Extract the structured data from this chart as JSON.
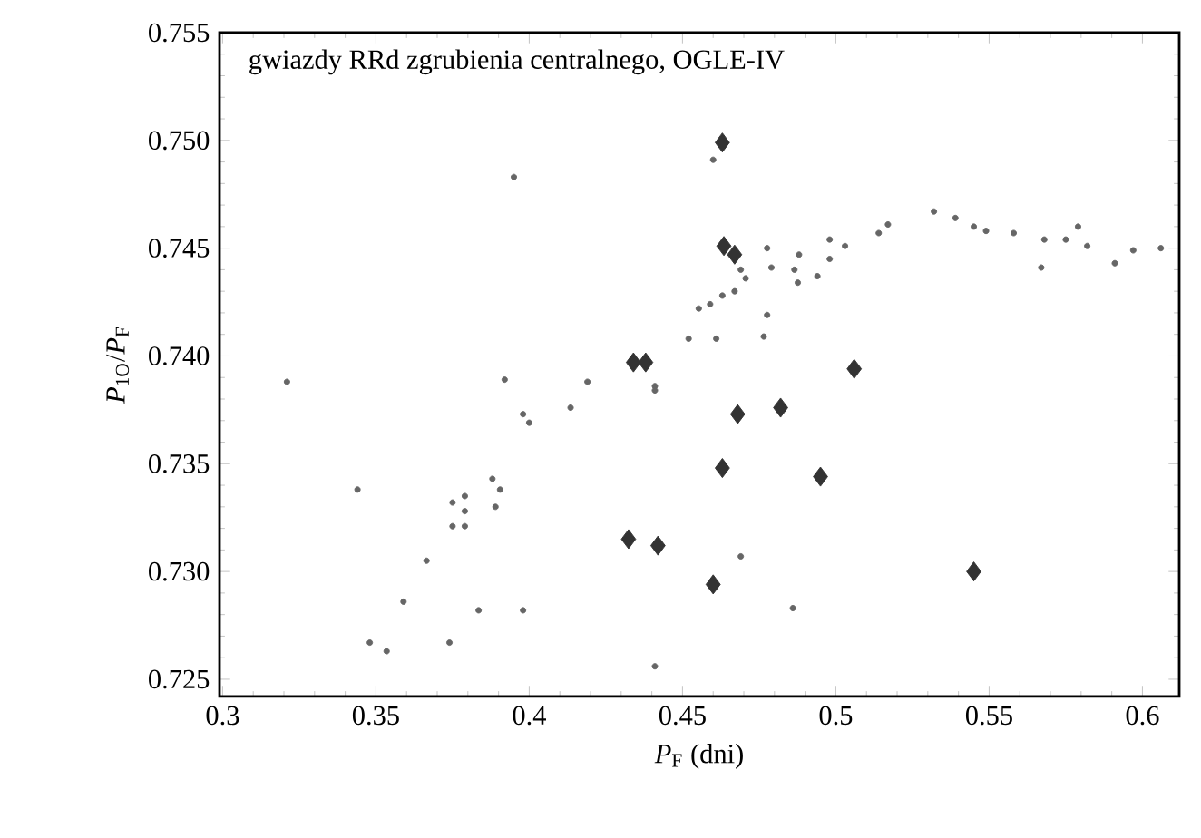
{
  "chart_data": {
    "type": "scatter",
    "title": "gwiazdy RRd zgrubienia centralnego, OGLE-IV",
    "xlabel": "*P*$_{F}$ (dni)",
    "ylabel": "*P*$_{1O}$/*P*$_{F}$",
    "xlim": [
      0.299,
      0.612
    ],
    "ylim": [
      0.7242,
      0.755
    ],
    "xticks": [
      {
        "value": 0.3,
        "label": "0.3"
      },
      0.35,
      {
        "value": 0.4,
        "label": "0.4"
      },
      0.45,
      {
        "value": 0.5,
        "label": "0.5"
      },
      0.55,
      {
        "value": 0.6,
        "label": "0.6"
      }
    ],
    "yticks": [
      0.725,
      {
        "value": 0.73,
        "label": "0.730"
      },
      0.735,
      {
        "value": 0.74,
        "label": "0.740"
      },
      0.745,
      {
        "value": 0.75,
        "label": "0.750"
      },
      0.755
    ],
    "series": [
      {
        "color": "#666666",
        "marker": "circle",
        "x": [
          0.321,
          0.395,
          0.392,
          0.419,
          0.4135,
          0.398,
          0.441,
          0.4,
          0.344,
          0.375,
          0.379,
          0.379,
          0.375,
          0.379,
          0.388,
          0.3905,
          0.389,
          0.3665,
          0.359,
          0.3835,
          0.398,
          0.348,
          0.3535,
          0.374,
          0.441,
          0.469,
          0.486,
          0.46,
          0.4553,
          0.463,
          0.4706,
          0.479,
          0.4865,
          0.488,
          0.494,
          0.498,
          0.498,
          0.503,
          0.514,
          0.517,
          0.532,
          0.539,
          0.545,
          0.549,
          0.558,
          0.568,
          0.567,
          0.575,
          0.579,
          0.582,
          0.591,
          0.597,
          0.606,
          0.4776,
          0.4776,
          0.4765,
          0.461,
          0.452,
          0.459,
          0.469,
          0.467,
          0.4876,
          0.441
        ],
        "values": [
          0.7388,
          0.7483,
          0.7389,
          0.7388,
          0.7376,
          0.7373,
          0.7384,
          0.7369,
          0.7338,
          0.7332,
          0.7335,
          0.7328,
          0.7321,
          0.7321,
          0.7343,
          0.7338,
          0.733,
          0.7305,
          0.7286,
          0.7282,
          0.7282,
          0.7267,
          0.7263,
          0.7267,
          0.7256,
          0.7307,
          0.7283,
          0.7491,
          0.7422,
          0.7428,
          0.7436,
          0.7441,
          0.744,
          0.7447,
          0.7437,
          0.7445,
          0.7454,
          0.7451,
          0.7457,
          0.7461,
          0.7467,
          0.7464,
          0.746,
          0.7458,
          0.7457,
          0.7454,
          0.7441,
          0.7454,
          0.746,
          0.7451,
          0.7443,
          0.7449,
          0.745,
          0.745,
          0.7419,
          0.7409,
          0.7408,
          0.7408,
          0.7424,
          0.744,
          0.743,
          0.7434,
          0.7386
        ]
      },
      {
        "color": "#333333",
        "marker": "diamond",
        "x": [
          0.463,
          0.4635,
          0.467,
          0.434,
          0.438,
          0.506,
          0.468,
          0.482,
          0.463,
          0.495,
          0.442,
          0.46,
          0.545,
          0.4324
        ],
        "values": [
          0.7499,
          0.7451,
          0.7447,
          0.7397,
          0.7397,
          0.7394,
          0.7373,
          0.7376,
          0.7348,
          0.7344,
          0.7312,
          0.7294,
          0.73,
          0.7315
        ]
      }
    ]
  }
}
